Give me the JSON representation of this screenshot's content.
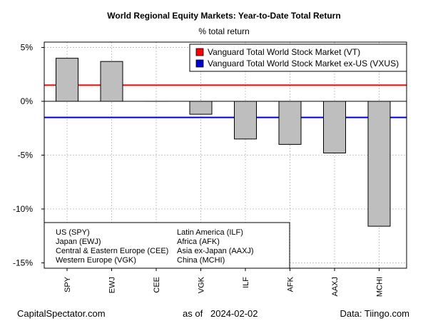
{
  "chart_data": {
    "type": "bar",
    "title": "World Regional Equity Markets: Year-to-Date Total Return",
    "subtitle": "% total return",
    "xlabel": "",
    "ylabel": "",
    "categories": [
      "SPY",
      "EWJ",
      "CEE",
      "VGK",
      "ILF",
      "AFK",
      "AAXJ",
      "MCHI"
    ],
    "values": [
      4.0,
      3.7,
      0.0,
      -1.2,
      -3.5,
      -4.0,
      -4.8,
      -11.6
    ],
    "ylim": [
      -15.5,
      5.5
    ],
    "yticks": [
      5,
      0,
      -5,
      -10,
      -15
    ],
    "ytick_labels": [
      "5%",
      "0%",
      "-5%",
      "-10%",
      "-15%"
    ],
    "grid": true,
    "bar_color": "#bebebe",
    "reference_lines": [
      {
        "name": "Vanguard Total World Stock Market (VT)",
        "value": 1.5,
        "color": "#ff0000"
      },
      {
        "name": "Vanguard Total World Stock Market ex-US (VXUS)",
        "value": -1.5,
        "color": "#0000cc"
      }
    ],
    "legend_position": "top-right",
    "ticker_key": [
      [
        "US (SPY)",
        "Japan (EWJ)",
        "Central & Eastern Europe (CEE)",
        "Western Europe (VGK)"
      ],
      [
        "Latin America (ILF)",
        "Africa (AFK)",
        "Asia ex-Japan (AAXJ)",
        "China (MCHI)"
      ]
    ]
  },
  "footer": {
    "source_left": "CapitalSpectator.com",
    "as_of": "as of   2024-02-02",
    "data_source": "Data: Tiingo.com"
  }
}
